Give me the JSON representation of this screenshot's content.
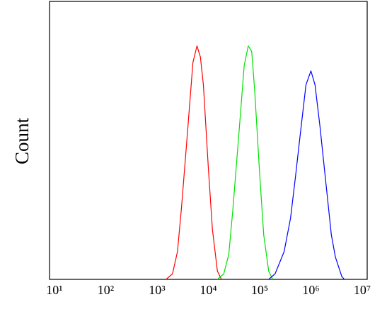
{
  "chart_data": {
    "type": "line",
    "y_label": "Count",
    "xscale": "log",
    "xlim": [
      10,
      10000000
    ],
    "xticks": [
      {
        "value": 10,
        "label": "10¹"
      },
      {
        "value": 100,
        "label": "10²"
      },
      {
        "value": 1000,
        "label": "10³"
      },
      {
        "value": 10000,
        "label": "10⁴"
      },
      {
        "value": 100000,
        "label": "10⁵"
      },
      {
        "value": 1000000,
        "label": "10⁶"
      },
      {
        "value": 10000000,
        "label": "10⁷"
      }
    ],
    "ylim": [
      0,
      100
    ],
    "grid": false,
    "series": [
      {
        "color": "#ff0000",
        "x": [
          1500,
          2000,
          2500,
          3000,
          4000,
          5000,
          6000,
          7000,
          8000,
          10000,
          12000,
          15000,
          18000
        ],
        "values": [
          0,
          2,
          10,
          26,
          55,
          78,
          84,
          80,
          70,
          40,
          18,
          3,
          0
        ]
      },
      {
        "color": "#00e000",
        "x": [
          15000,
          20000,
          25000,
          30000,
          40000,
          50000,
          60000,
          70000,
          80000,
          100000,
          120000,
          150000,
          180000
        ],
        "values": [
          0,
          2,
          9,
          25,
          54,
          77,
          84,
          82,
          68,
          38,
          16,
          3,
          0
        ]
      },
      {
        "color": "#0000ff",
        "x": [
          150000,
          200000,
          300000,
          400000,
          500000,
          600000,
          800000,
          1000000,
          1200000,
          1500000,
          2000000,
          2500000,
          3000000,
          4000000,
          4500000
        ],
        "values": [
          0,
          2,
          10,
          22,
          37,
          50,
          70,
          75,
          70,
          55,
          33,
          16,
          8,
          1,
          0
        ]
      }
    ]
  }
}
